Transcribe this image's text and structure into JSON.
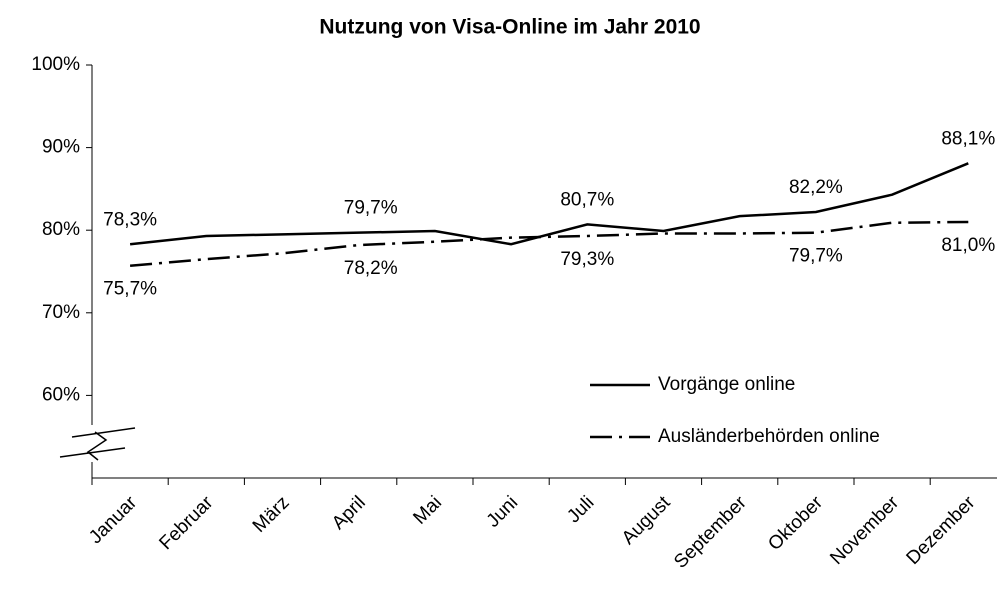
{
  "chart_data": {
    "type": "line",
    "title": "Nutzung von Visa-Online im Jahr 2010",
    "categories": [
      "Januar",
      "Februar",
      "März",
      "April",
      "Mai",
      "Juni",
      "Juli",
      "August",
      "September",
      "Oktober",
      "November",
      "Dezember"
    ],
    "series": [
      {
        "name": "Vorgänge online",
        "color": "#000000",
        "dash": "solid",
        "values": [
          78.3,
          79.3,
          79.5,
          79.7,
          79.9,
          78.3,
          80.7,
          79.9,
          81.7,
          82.2,
          84.3,
          88.1
        ],
        "value_labels": [
          "78,3%",
          null,
          null,
          "79,7%",
          null,
          null,
          "80,7%",
          null,
          null,
          "82,2%",
          null,
          "88,1%"
        ]
      },
      {
        "name": "Ausländerbehörden online",
        "color": "#000000",
        "dash": "dash-dot",
        "values": [
          75.7,
          76.5,
          77.2,
          78.2,
          78.6,
          79.1,
          79.3,
          79.6,
          79.6,
          79.7,
          80.9,
          81.0
        ],
        "value_labels": [
          "75,7%",
          null,
          null,
          "78,2%",
          null,
          null,
          "79,3%",
          null,
          null,
          "79,7%",
          null,
          "81,0%"
        ]
      }
    ],
    "ylim": [
      50,
      100
    ],
    "yticks": [
      {
        "value": 60,
        "label": "60%"
      },
      {
        "value": 70,
        "label": "70%"
      },
      {
        "value": 80,
        "label": "80%"
      },
      {
        "value": 90,
        "label": "90%"
      },
      {
        "value": 100,
        "label": "100%"
      }
    ],
    "grid": false,
    "legend": "lower right"
  }
}
